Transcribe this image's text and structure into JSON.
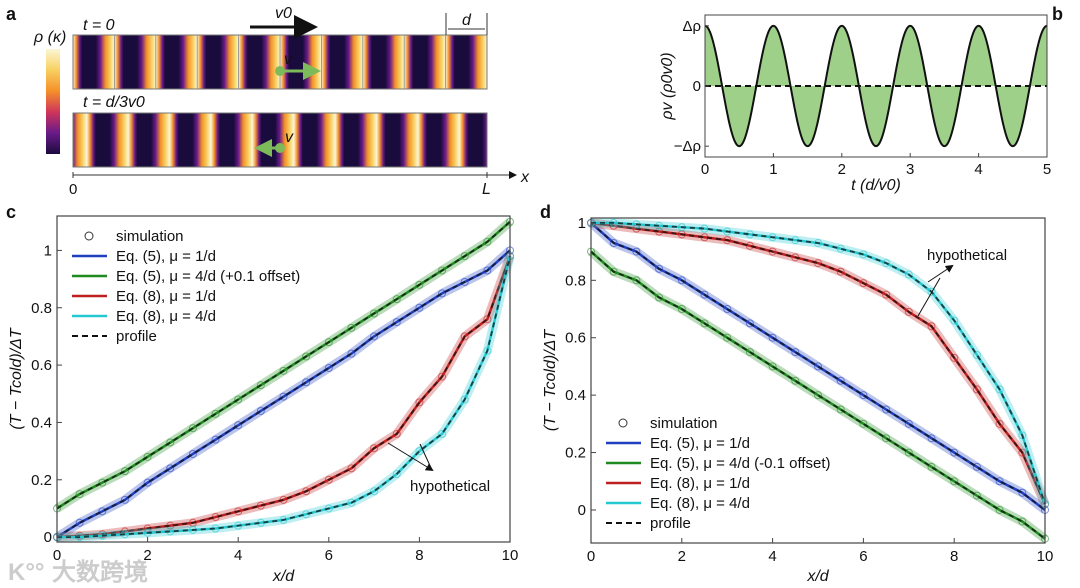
{
  "panel_labels": {
    "a": "a",
    "b": "b",
    "c": "c",
    "d": "d"
  },
  "watermark": "大数跨境",
  "chart_data": [
    {
      "id": "a",
      "type": "heatmap",
      "colorbar_label": "ρ (κ)",
      "colormap": [
        "#1a0b3d",
        "#6a1a8a",
        "#d0355a",
        "#f4902a",
        "#f8d060",
        "#fbf6d6"
      ],
      "cells": 10,
      "rows": [
        {
          "label": "t = 0",
          "phase": 0,
          "particle_label": "v",
          "particle_dir": "right"
        },
        {
          "label": "t = d/3v0",
          "phase": 0.333,
          "particle_label": "v",
          "particle_dir": "left"
        }
      ],
      "velocity_label": "v0",
      "cell_label": "d",
      "x_axis_label": "x",
      "x_start_label": "0",
      "x_end_label": "L",
      "particle_color": "#7dbb5a"
    },
    {
      "id": "b",
      "type": "area",
      "xlabel": "t (d/v0)",
      "ylabel": "ρv (ρ0v0)",
      "xlim": [
        0,
        5
      ],
      "ylim": [
        -1.18,
        1.18
      ],
      "xticks": [
        "0",
        "1",
        "2",
        "3",
        "4",
        "5"
      ],
      "yticks": [
        {
          "value": 1,
          "label": "Δρ"
        },
        {
          "value": 0,
          "label": "0"
        },
        {
          "value": -1,
          "label": "−Δρ"
        }
      ],
      "function": "amplitude*cos(2*pi*t/period)",
      "amplitude": 1,
      "period": 1,
      "fill_color": "#9fd08a",
      "zero_line": "dashed"
    },
    {
      "id": "c",
      "type": "line",
      "xlabel": "x/d",
      "ylabel": "(T − Tcold)/ΔT",
      "xlim": [
        0,
        10
      ],
      "ylim": [
        -0.017,
        1.12
      ],
      "xticks": [
        0,
        2,
        4,
        6,
        8,
        10
      ],
      "yticks": [
        0,
        0.2,
        0.4,
        0.6,
        0.8,
        1
      ],
      "ytick_labels": [
        "0",
        "0.2",
        "0.4",
        "0.6",
        "0.8",
        "1"
      ],
      "x": [
        0,
        0.5,
        1,
        1.5,
        2,
        2.5,
        3,
        3.5,
        4,
        4.5,
        5,
        5.5,
        6,
        6.5,
        7,
        7.5,
        8,
        8.5,
        9,
        9.5,
        10
      ],
      "series": [
        {
          "name": "Eq. (5), μ = 1/d",
          "color": "#1f3fbf",
          "values": [
            0,
            0.05,
            0.09,
            0.13,
            0.19,
            0.24,
            0.29,
            0.34,
            0.39,
            0.44,
            0.49,
            0.54,
            0.59,
            0.64,
            0.7,
            0.75,
            0.8,
            0.85,
            0.89,
            0.93,
            1.0
          ]
        },
        {
          "name": "Eq. (5), μ = 4/d (+0.1 offset)",
          "color": "#1f8a1f",
          "values": [
            0.1,
            0.15,
            0.19,
            0.23,
            0.28,
            0.33,
            0.38,
            0.43,
            0.48,
            0.53,
            0.58,
            0.63,
            0.68,
            0.73,
            0.78,
            0.83,
            0.88,
            0.93,
            0.98,
            1.03,
            1.1
          ]
        },
        {
          "name": "Eq. (8), μ = 1/d",
          "color": "#c01f1f",
          "values": [
            0,
            0.005,
            0.01,
            0.02,
            0.03,
            0.04,
            0.05,
            0.07,
            0.09,
            0.11,
            0.13,
            0.16,
            0.2,
            0.24,
            0.31,
            0.36,
            0.47,
            0.56,
            0.7,
            0.76,
            0.98
          ]
        },
        {
          "name": "Eq. (8), μ = 4/d",
          "color": "#25c8d0",
          "values": [
            0,
            0,
            0.005,
            0.01,
            0.015,
            0.02,
            0.025,
            0.03,
            0.04,
            0.05,
            0.06,
            0.08,
            0.1,
            0.12,
            0.16,
            0.22,
            0.3,
            0.36,
            0.48,
            0.65,
            0.98
          ]
        }
      ],
      "legend": {
        "simulation": "simulation",
        "profile": "profile",
        "placement": "top-left"
      },
      "annotation": "hypothetical"
    },
    {
      "id": "d",
      "type": "line",
      "xlabel": "x/d",
      "ylabel": "(T − Tcold)/ΔT",
      "xlim": [
        0,
        10
      ],
      "ylim": [
        -0.115,
        1.017
      ],
      "xticks": [
        0,
        2,
        4,
        6,
        8,
        10
      ],
      "yticks": [
        0,
        0.2,
        0.4,
        0.6,
        0.8,
        1
      ],
      "ytick_labels": [
        "0",
        "0.2",
        "0.4",
        "0.6",
        "0.8",
        "1"
      ],
      "x": [
        0,
        0.5,
        1,
        1.5,
        2,
        2.5,
        3,
        3.5,
        4,
        4.5,
        5,
        5.5,
        6,
        6.5,
        7,
        7.5,
        8,
        8.5,
        9,
        9.5,
        10
      ],
      "series": [
        {
          "name": "Eq. (5), μ = 1/d",
          "color": "#1f3fbf",
          "values": [
            1,
            0.93,
            0.9,
            0.84,
            0.8,
            0.75,
            0.7,
            0.65,
            0.6,
            0.55,
            0.5,
            0.45,
            0.4,
            0.35,
            0.3,
            0.25,
            0.2,
            0.15,
            0.1,
            0.06,
            0.0
          ]
        },
        {
          "name": "Eq. (5), μ = 4/d (-0.1 offset)",
          "color": "#1f8a1f",
          "values": [
            0.9,
            0.83,
            0.8,
            0.74,
            0.7,
            0.65,
            0.6,
            0.55,
            0.5,
            0.45,
            0.4,
            0.35,
            0.3,
            0.25,
            0.2,
            0.15,
            0.1,
            0.05,
            0.0,
            -0.04,
            -0.1
          ]
        },
        {
          "name": "Eq. (8), μ = 1/d",
          "color": "#c01f1f",
          "values": [
            1.0,
            0.99,
            0.98,
            0.97,
            0.96,
            0.95,
            0.94,
            0.92,
            0.9,
            0.88,
            0.86,
            0.83,
            0.79,
            0.75,
            0.69,
            0.64,
            0.53,
            0.42,
            0.3,
            0.2,
            0.02
          ]
        },
        {
          "name": "Eq. (8), μ = 4/d",
          "color": "#25c8d0",
          "values": [
            1,
            1,
            0.995,
            0.99,
            0.985,
            0.98,
            0.97,
            0.96,
            0.95,
            0.94,
            0.93,
            0.91,
            0.89,
            0.86,
            0.82,
            0.76,
            0.66,
            0.54,
            0.42,
            0.26,
            0.02
          ]
        }
      ],
      "legend": {
        "simulation": "simulation",
        "profile": "profile",
        "placement": "bottom-left"
      },
      "annotation": "hypothetical"
    }
  ]
}
